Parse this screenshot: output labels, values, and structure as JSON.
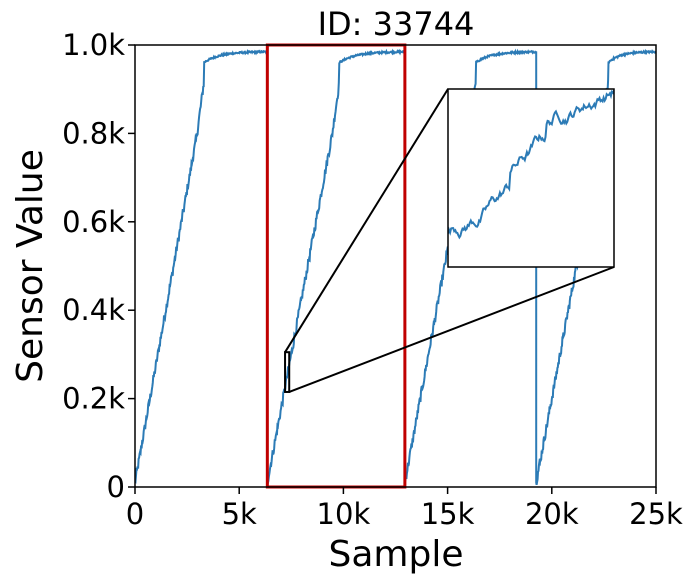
{
  "chart_data": {
    "type": "line",
    "title": "ID: 33744",
    "xlabel": "Sample",
    "ylabel": "Sensor Value",
    "xlim": [
      0,
      25000
    ],
    "ylim": [
      0,
      1000
    ],
    "xticks": [
      0,
      5000,
      10000,
      15000,
      20000,
      25000
    ],
    "xtick_labels": [
      "0",
      "5k",
      "10k",
      "15k",
      "20k",
      "25k"
    ],
    "yticks": [
      0,
      200,
      400,
      600,
      800,
      1000
    ],
    "ytick_labels": [
      "0",
      "0.2k",
      "0.4k",
      "0.6k",
      "0.8k",
      "1.0k"
    ],
    "grid": false,
    "line_color": "#2c7bb6",
    "series": [
      {
        "cycles": [
          {
            "start": 0,
            "rise_end": 3300,
            "plateau_start_value": 960,
            "end": 6350,
            "end_value": 985
          },
          {
            "start": 6350,
            "rise_end": 9800,
            "plateau_start_value": 960,
            "end": 12950,
            "end_value": 985
          },
          {
            "start": 12950,
            "rise_end": 16350,
            "plateau_start_value": 960,
            "end": 19250,
            "end_value": 985
          },
          {
            "start": 19250,
            "rise_end": 22700,
            "plateau_start_value": 960,
            "end": 25000,
            "end_value": 985
          }
        ],
        "start_value": 10
      }
    ],
    "highlight_box": {
      "x": [
        6350,
        12950
      ],
      "y": [
        0,
        1000
      ],
      "color": "#c00000"
    },
    "zoom_region": {
      "x": [
        7200,
        7400
      ],
      "y": [
        215,
        305
      ]
    },
    "inset": {
      "shows": "zoom_region",
      "border_color": "#000000"
    }
  }
}
